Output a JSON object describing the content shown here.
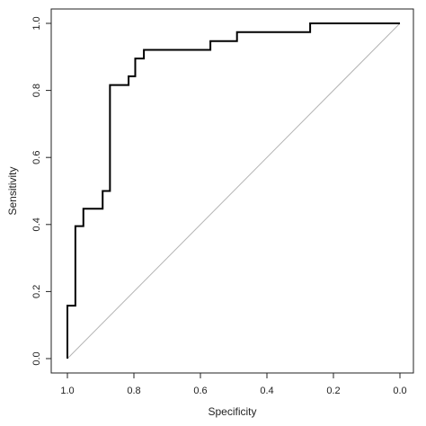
{
  "chart_data": {
    "type": "line",
    "title": "",
    "xlabel": "Specificity",
    "ylabel": "Sensitivity",
    "xlim": [
      1.0,
      0.0
    ],
    "ylim": [
      0.0,
      1.0
    ],
    "x_reversed": true,
    "grid": false,
    "legend": "none",
    "x_ticks": [
      "1.0",
      "0.8",
      "0.6",
      "0.4",
      "0.2",
      "0.0"
    ],
    "x_tick_values": [
      1.0,
      0.8,
      0.6,
      0.4,
      0.2,
      0.0
    ],
    "y_ticks": [
      "0.0",
      "0.2",
      "0.4",
      "0.6",
      "0.8",
      "1.0"
    ],
    "y_tick_values": [
      0.0,
      0.2,
      0.4,
      0.6,
      0.8,
      1.0
    ],
    "reference_line": {
      "from": [
        1.0,
        0.0
      ],
      "to": [
        0.0,
        1.0
      ],
      "color": "#b3b3b3"
    },
    "series": [
      {
        "color": "#000000",
        "points": [
          [
            1.0,
            0.0
          ],
          [
            1.0,
            0.158
          ],
          [
            0.976,
            0.158
          ],
          [
            0.976,
            0.395
          ],
          [
            0.952,
            0.395
          ],
          [
            0.952,
            0.447
          ],
          [
            0.894,
            0.447
          ],
          [
            0.894,
            0.5
          ],
          [
            0.872,
            0.5
          ],
          [
            0.872,
            0.816
          ],
          [
            0.816,
            0.816
          ],
          [
            0.816,
            0.842
          ],
          [
            0.796,
            0.842
          ],
          [
            0.796,
            0.895
          ],
          [
            0.77,
            0.895
          ],
          [
            0.77,
            0.921
          ],
          [
            0.57,
            0.921
          ],
          [
            0.57,
            0.947
          ],
          [
            0.49,
            0.947
          ],
          [
            0.49,
            0.974
          ],
          [
            0.27,
            0.974
          ],
          [
            0.27,
            1.0
          ],
          [
            0.0,
            1.0
          ]
        ]
      }
    ]
  }
}
